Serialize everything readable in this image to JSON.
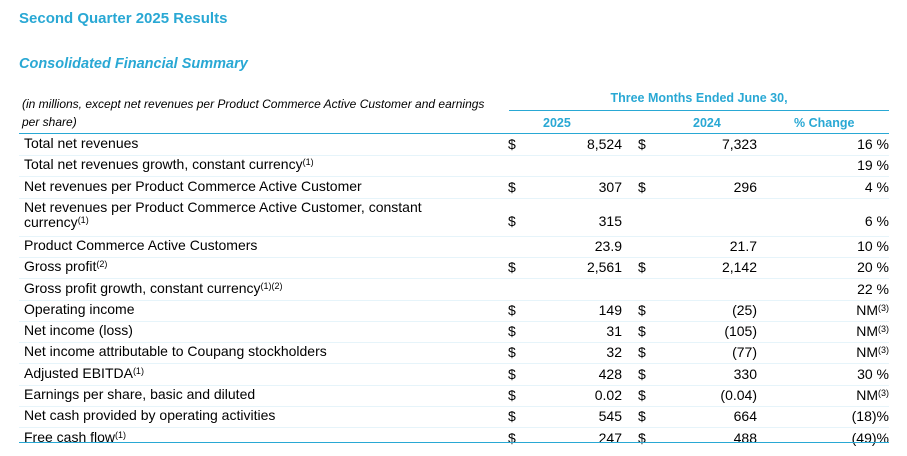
{
  "heading": "Second Quarter 2025 Results",
  "subheading": "Consolidated Financial Summary",
  "table": {
    "note": "(in millions, except net revenues per Product Commerce Active Customer and earnings per share)",
    "period": "Three Months Ended June 30,",
    "col_2025": "2025",
    "col_2024": "2024",
    "col_change": "% Change",
    "rows": [
      {
        "label": "Total net revenues",
        "sup": "",
        "d1": "$",
        "v1": "8,524",
        "d2": "$",
        "v2": "7,323",
        "pct": "16 %"
      },
      {
        "label": "Total net revenues growth, constant currency",
        "sup": "(1)",
        "d1": "",
        "v1": "",
        "d2": "",
        "v2": "",
        "pct": "19 %"
      },
      {
        "label": "Net revenues per Product Commerce Active Customer",
        "sup": "",
        "d1": "$",
        "v1": "307",
        "d2": "$",
        "v2": "296",
        "pct": "4 %"
      },
      {
        "label": "Net revenues per Product Commerce Active Customer, constant currency",
        "sup": "(1)",
        "d1": "$",
        "v1": "315",
        "d2": "",
        "v2": "",
        "pct": "6 %"
      },
      {
        "label": "Product Commerce Active Customers",
        "sup": "",
        "d1": "",
        "v1": "23.9",
        "d2": "",
        "v2": "21.7",
        "pct": "10 %"
      },
      {
        "label": "Gross profit",
        "sup": "(2)",
        "d1": "$",
        "v1": "2,561",
        "d2": "$",
        "v2": "2,142",
        "pct": "20 %"
      },
      {
        "label": "Gross profit growth, constant currency",
        "sup": "(1)(2)",
        "d1": "",
        "v1": "",
        "d2": "",
        "v2": "",
        "pct": "22 %"
      },
      {
        "label": "Operating income",
        "sup": "",
        "d1": "$",
        "v1": "149",
        "d2": "$",
        "v2": "(25)",
        "pct": "NM",
        "pct_sup": "(3)"
      },
      {
        "label": "Net income (loss)",
        "sup": "",
        "d1": "$",
        "v1": "31",
        "d2": "$",
        "v2": "(105)",
        "pct": "NM",
        "pct_sup": "(3)"
      },
      {
        "label": "Net income attributable to Coupang stockholders",
        "sup": "",
        "d1": "$",
        "v1": "32",
        "d2": "$",
        "v2": "(77)",
        "pct": "NM",
        "pct_sup": "(3)"
      },
      {
        "label": "Adjusted EBITDA",
        "sup": "(1)",
        "d1": "$",
        "v1": "428",
        "d2": "$",
        "v2": "330",
        "pct": "30 %"
      },
      {
        "label": "Earnings per share, basic and diluted",
        "sup": "",
        "d1": "$",
        "v1": "0.02",
        "d2": "$",
        "v2": "(0.04)",
        "pct": "NM",
        "pct_sup": "(3)"
      },
      {
        "label": "Net cash provided by operating activities",
        "sup": "",
        "d1": "$",
        "v1": "545",
        "d2": "$",
        "v2": "664",
        "pct": "(18)%"
      },
      {
        "label": "Free cash flow",
        "sup": "(1)",
        "d1": "$",
        "v1": "247",
        "d2": "$",
        "v2": "488",
        "pct": "(49)%"
      }
    ]
  }
}
